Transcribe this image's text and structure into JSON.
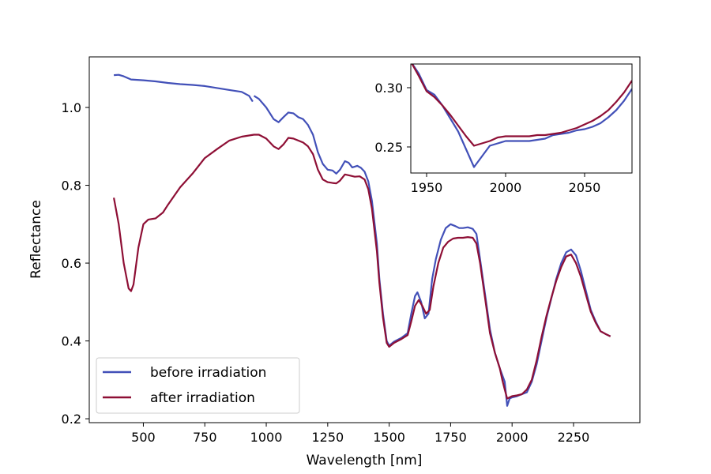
{
  "chart_data": {
    "type": "line",
    "xlabel": "Wavelength [nm]",
    "ylabel": "Reflectance",
    "xlim": [
      280,
      2520
    ],
    "ylim": [
      0.19,
      1.13
    ],
    "xticks": [
      500,
      750,
      1000,
      1250,
      1500,
      1750,
      2000,
      2250
    ],
    "yticks": [
      0.2,
      0.4,
      0.6,
      0.8,
      1.0
    ],
    "xtick_labels": [
      "500",
      "750",
      "1000",
      "1250",
      "1500",
      "1750",
      "2000",
      "2250"
    ],
    "ytick_labels": [
      "0.2",
      "0.4",
      "0.6",
      "0.8",
      "1.0"
    ],
    "grid": false,
    "legend_position": "lower-left",
    "series": [
      {
        "name": "before irradiation",
        "color": "#4250b8",
        "segments": [
          [
            [
              380,
              1.083
            ],
            [
              400,
              1.084
            ],
            [
              420,
              1.08
            ],
            [
              450,
              1.072
            ],
            [
              500,
              1.07
            ],
            [
              550,
              1.067
            ],
            [
              600,
              1.063
            ],
            [
              650,
              1.06
            ],
            [
              700,
              1.058
            ],
            [
              750,
              1.055
            ],
            [
              800,
              1.05
            ],
            [
              850,
              1.045
            ],
            [
              900,
              1.04
            ],
            [
              930,
              1.03
            ],
            [
              945,
              1.015
            ]
          ],
          [
            [
              950,
              1.03
            ],
            [
              970,
              1.022
            ],
            [
              1000,
              1.0
            ],
            [
              1030,
              0.97
            ],
            [
              1050,
              0.962
            ],
            [
              1070,
              0.975
            ],
            [
              1090,
              0.987
            ],
            [
              1110,
              0.985
            ],
            [
              1130,
              0.975
            ],
            [
              1150,
              0.97
            ],
            [
              1170,
              0.955
            ],
            [
              1190,
              0.93
            ],
            [
              1210,
              0.885
            ],
            [
              1230,
              0.855
            ],
            [
              1250,
              0.84
            ],
            [
              1270,
              0.838
            ],
            [
              1285,
              0.83
            ],
            [
              1300,
              0.84
            ],
            [
              1320,
              0.862
            ],
            [
              1335,
              0.858
            ],
            [
              1350,
              0.846
            ],
            [
              1370,
              0.85
            ],
            [
              1385,
              0.845
            ],
            [
              1400,
              0.835
            ],
            [
              1415,
              0.81
            ],
            [
              1430,
              0.76
            ],
            [
              1450,
              0.65
            ],
            [
              1460,
              0.56
            ],
            [
              1475,
              0.47
            ],
            [
              1490,
              0.4
            ],
            [
              1500,
              0.388
            ],
            [
              1520,
              0.398
            ],
            [
              1550,
              0.408
            ],
            [
              1575,
              0.42
            ],
            [
              1590,
              0.47
            ],
            [
              1605,
              0.515
            ],
            [
              1615,
              0.525
            ],
            [
              1630,
              0.5
            ],
            [
              1645,
              0.458
            ],
            [
              1660,
              0.47
            ],
            [
              1675,
              0.56
            ],
            [
              1690,
              0.61
            ],
            [
              1710,
              0.66
            ],
            [
              1730,
              0.69
            ],
            [
              1750,
              0.7
            ],
            [
              1770,
              0.695
            ],
            [
              1785,
              0.69
            ],
            [
              1800,
              0.69
            ],
            [
              1820,
              0.692
            ],
            [
              1840,
              0.688
            ],
            [
              1855,
              0.675
            ],
            [
              1870,
              0.61
            ],
            [
              1890,
              0.52
            ],
            [
              1910,
              0.43
            ],
            [
              1930,
              0.37
            ],
            [
              1950,
              0.33
            ],
            [
              1970,
              0.295
            ],
            [
              1980,
              0.233
            ],
            [
              1990,
              0.252
            ],
            [
              2000,
              0.255
            ],
            [
              2020,
              0.258
            ],
            [
              2040,
              0.263
            ],
            [
              2060,
              0.268
            ],
            [
              2080,
              0.295
            ],
            [
              2100,
              0.34
            ],
            [
              2120,
              0.4
            ],
            [
              2140,
              0.46
            ],
            [
              2160,
              0.51
            ],
            [
              2180,
              0.56
            ],
            [
              2200,
              0.6
            ],
            [
              2220,
              0.628
            ],
            [
              2240,
              0.635
            ],
            [
              2260,
              0.62
            ],
            [
              2280,
              0.58
            ],
            [
              2300,
              0.53
            ],
            [
              2320,
              0.48
            ],
            [
              2340,
              0.45
            ],
            [
              2360,
              0.425
            ],
            [
              2380,
              0.418
            ],
            [
              2400,
              0.412
            ]
          ]
        ]
      },
      {
        "name": "after irradiation",
        "color": "#8e0f35",
        "segments": [
          [
            [
              380,
              0.768
            ],
            [
              400,
              0.7
            ],
            [
              420,
              0.6
            ],
            [
              440,
              0.535
            ],
            [
              450,
              0.528
            ],
            [
              460,
              0.545
            ],
            [
              480,
              0.64
            ],
            [
              500,
              0.7
            ],
            [
              520,
              0.712
            ],
            [
              550,
              0.715
            ],
            [
              580,
              0.73
            ],
            [
              600,
              0.75
            ],
            [
              650,
              0.795
            ],
            [
              700,
              0.83
            ],
            [
              750,
              0.87
            ],
            [
              800,
              0.893
            ],
            [
              850,
              0.915
            ],
            [
              900,
              0.925
            ],
            [
              950,
              0.93
            ],
            [
              970,
              0.93
            ],
            [
              1000,
              0.92
            ],
            [
              1030,
              0.9
            ],
            [
              1050,
              0.893
            ],
            [
              1070,
              0.905
            ],
            [
              1090,
              0.922
            ],
            [
              1110,
              0.92
            ],
            [
              1150,
              0.91
            ],
            [
              1170,
              0.9
            ],
            [
              1190,
              0.88
            ],
            [
              1210,
              0.84
            ],
            [
              1230,
              0.815
            ],
            [
              1250,
              0.808
            ],
            [
              1270,
              0.806
            ],
            [
              1285,
              0.805
            ],
            [
              1300,
              0.812
            ],
            [
              1320,
              0.828
            ],
            [
              1340,
              0.825
            ],
            [
              1360,
              0.822
            ],
            [
              1380,
              0.823
            ],
            [
              1400,
              0.815
            ],
            [
              1415,
              0.79
            ],
            [
              1430,
              0.74
            ],
            [
              1450,
              0.63
            ],
            [
              1460,
              0.55
            ],
            [
              1475,
              0.46
            ],
            [
              1490,
              0.395
            ],
            [
              1500,
              0.385
            ],
            [
              1520,
              0.395
            ],
            [
              1550,
              0.405
            ],
            [
              1575,
              0.415
            ],
            [
              1590,
              0.45
            ],
            [
              1605,
              0.49
            ],
            [
              1620,
              0.505
            ],
            [
              1635,
              0.49
            ],
            [
              1650,
              0.47
            ],
            [
              1665,
              0.48
            ],
            [
              1680,
              0.54
            ],
            [
              1700,
              0.6
            ],
            [
              1720,
              0.64
            ],
            [
              1740,
              0.655
            ],
            [
              1760,
              0.663
            ],
            [
              1780,
              0.665
            ],
            [
              1800,
              0.665
            ],
            [
              1820,
              0.667
            ],
            [
              1840,
              0.665
            ],
            [
              1855,
              0.65
            ],
            [
              1870,
              0.6
            ],
            [
              1890,
              0.51
            ],
            [
              1910,
              0.42
            ],
            [
              1930,
              0.37
            ],
            [
              1950,
              0.33
            ],
            [
              1960,
              0.3
            ],
            [
              1970,
              0.275
            ],
            [
              1980,
              0.252
            ],
            [
              2000,
              0.258
            ],
            [
              2020,
              0.26
            ],
            [
              2040,
              0.263
            ],
            [
              2060,
              0.275
            ],
            [
              2080,
              0.3
            ],
            [
              2100,
              0.35
            ],
            [
              2120,
              0.41
            ],
            [
              2140,
              0.465
            ],
            [
              2160,
              0.512
            ],
            [
              2180,
              0.555
            ],
            [
              2200,
              0.59
            ],
            [
              2220,
              0.617
            ],
            [
              2240,
              0.622
            ],
            [
              2260,
              0.6
            ],
            [
              2280,
              0.565
            ],
            [
              2300,
              0.52
            ],
            [
              2320,
              0.475
            ],
            [
              2340,
              0.447
            ],
            [
              2360,
              0.425
            ],
            [
              2380,
              0.418
            ],
            [
              2400,
              0.412
            ]
          ]
        ]
      }
    ],
    "inset": {
      "xlim": [
        1940,
        2080
      ],
      "ylim": [
        0.228,
        0.32
      ],
      "xticks": [
        1950,
        2000,
        2050
      ],
      "yticks": [
        0.25,
        0.3
      ],
      "xtick_labels": [
        "1950",
        "2000",
        "2050"
      ],
      "ytick_labels": [
        "0.25",
        "0.30"
      ],
      "series": [
        {
          "name": "before irradiation",
          "color": "#4250b8",
          "points": [
            [
              1940,
              0.322
            ],
            [
              1945,
              0.312
            ],
            [
              1950,
              0.298
            ],
            [
              1955,
              0.294
            ],
            [
              1960,
              0.285
            ],
            [
              1965,
              0.274
            ],
            [
              1970,
              0.263
            ],
            [
              1975,
              0.248
            ],
            [
              1980,
              0.233
            ],
            [
              1985,
              0.242
            ],
            [
              1990,
              0.251
            ],
            [
              1995,
              0.253
            ],
            [
              2000,
              0.255
            ],
            [
              2005,
              0.255
            ],
            [
              2010,
              0.255
            ],
            [
              2015,
              0.255
            ],
            [
              2020,
              0.256
            ],
            [
              2025,
              0.257
            ],
            [
              2030,
              0.26
            ],
            [
              2035,
              0.261
            ],
            [
              2040,
              0.262
            ],
            [
              2045,
              0.264
            ],
            [
              2050,
              0.265
            ],
            [
              2055,
              0.267
            ],
            [
              2060,
              0.27
            ],
            [
              2065,
              0.275
            ],
            [
              2070,
              0.281
            ],
            [
              2075,
              0.289
            ],
            [
              2080,
              0.299
            ]
          ]
        },
        {
          "name": "after irradiation",
          "color": "#8e0f35",
          "points": [
            [
              1940,
              0.322
            ],
            [
              1945,
              0.31
            ],
            [
              1950,
              0.297
            ],
            [
              1955,
              0.292
            ],
            [
              1960,
              0.285
            ],
            [
              1965,
              0.277
            ],
            [
              1970,
              0.268
            ],
            [
              1975,
              0.259
            ],
            [
              1980,
              0.251
            ],
            [
              1985,
              0.253
            ],
            [
              1990,
              0.255
            ],
            [
              1995,
              0.258
            ],
            [
              2000,
              0.259
            ],
            [
              2005,
              0.259
            ],
            [
              2010,
              0.259
            ],
            [
              2015,
              0.259
            ],
            [
              2020,
              0.26
            ],
            [
              2025,
              0.26
            ],
            [
              2030,
              0.261
            ],
            [
              2035,
              0.262
            ],
            [
              2040,
              0.264
            ],
            [
              2045,
              0.266
            ],
            [
              2050,
              0.269
            ],
            [
              2055,
              0.272
            ],
            [
              2060,
              0.276
            ],
            [
              2065,
              0.281
            ],
            [
              2070,
              0.288
            ],
            [
              2075,
              0.296
            ],
            [
              2080,
              0.306
            ]
          ]
        }
      ]
    }
  }
}
